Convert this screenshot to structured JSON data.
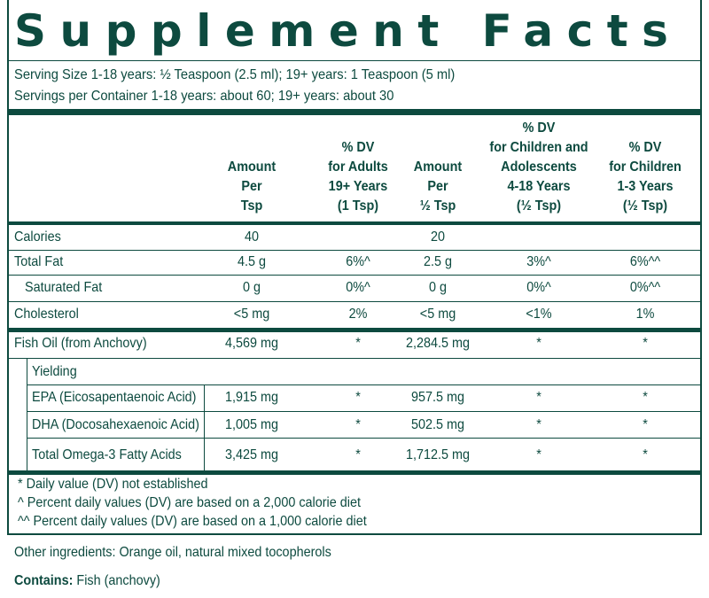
{
  "title": "Supplement Facts",
  "serving_size": "Serving Size 1-18 years: ½  Teaspoon (2.5 ml); 19+ years: 1 Teaspoon (5 ml)",
  "servings_per_container": "Servings per Container 1-18 years: about 60; 19+ years: about 30",
  "columns": [
    [
      "Amount",
      "Per",
      "Tsp"
    ],
    [
      "% DV",
      "for Adults",
      "19+ Years",
      "(1 Tsp)"
    ],
    [
      "Amount",
      "Per",
      "½ Tsp"
    ],
    [
      "% DV",
      "for Children and",
      "Adolescents",
      "4-18 Years",
      "(½ Tsp)"
    ],
    [
      "% DV",
      "for Children",
      "1-3 Years",
      "(½ Tsp)"
    ]
  ],
  "rows": [
    {
      "label": "Calories",
      "values": [
        "40",
        "",
        "20",
        "",
        ""
      ]
    },
    {
      "label": "Total Fat",
      "values": [
        "4.5 g",
        "6%^",
        "2.5 g",
        "3%^",
        "6%^^"
      ]
    },
    {
      "label": "Saturated Fat",
      "values": [
        "0 g",
        "0%^",
        "0 g",
        "0%^",
        "0%^^"
      ]
    },
    {
      "label": "Cholesterol",
      "values": [
        "<5 mg",
        "2%",
        "<5 mg",
        "<1%",
        "1%"
      ]
    },
    {
      "label": "Fish Oil (from Anchovy)",
      "values": [
        "4,569 mg",
        "*",
        "2,284.5 mg",
        "*",
        "*"
      ]
    },
    {
      "label": "Yielding",
      "values": [
        "",
        "",
        "",
        "",
        ""
      ]
    },
    {
      "label": "EPA (Eicosapentaenoic Acid)",
      "values": [
        "1,915 mg",
        "*",
        "957.5 mg",
        "*",
        "*"
      ]
    },
    {
      "label": "DHA (Docosahexaenoic Acid)",
      "values": [
        "1,005 mg",
        "*",
        "502.5 mg",
        "*",
        "*"
      ]
    },
    {
      "label": "Total Omega-3 Fatty Acids",
      "values": [
        "3,425 mg",
        "*",
        "1,712.5 mg",
        "*",
        "*"
      ]
    }
  ],
  "footnotes": [
    "*  Daily value (DV) not established",
    "^  Percent daily values (DV) are based on a 2,000 calorie diet",
    "^^ Percent daily values (DV) are based on a 1,000 calorie diet"
  ],
  "other_ingredients": "Other ingredients: Orange oil, natural mixed tocopherols",
  "contains_label": "Contains:",
  "contains_value": " Fish (anchovy)",
  "colors": {
    "text": "#0d4a3f",
    "background": "#ffffff"
  }
}
